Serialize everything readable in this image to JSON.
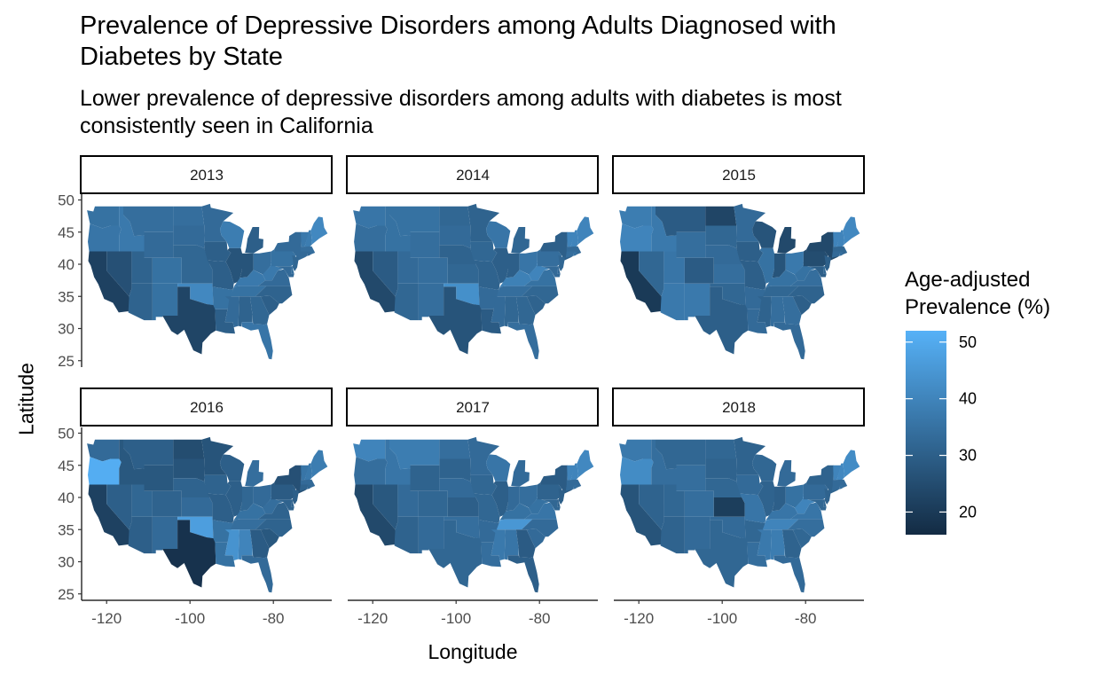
{
  "chart_data": {
    "type": "map",
    "title": "Prevalence of Depressive Disorders among Adults Diagnosed with Diabetes by State",
    "subtitle": "Lower prevalence of depressive disorders among adults with diabetes is most consistently seen in California",
    "xlabel": "Longitude",
    "ylabel": "Latitude",
    "legend_title": "Age-adjusted Prevalence (%)",
    "legend_position": "right",
    "legend_ticks": [
      20,
      30,
      40,
      50
    ],
    "color_range": [
      16,
      52
    ],
    "color_low": "#132b43",
    "color_high": "#56b1f7",
    "xlim": [
      -126,
      -66
    ],
    "ylim": [
      24,
      50
    ],
    "x_ticks": [
      -120,
      -100,
      -80
    ],
    "x_tick_labels": [
      "-120",
      "-100",
      "-80"
    ],
    "y_ticks": [
      25,
      30,
      35,
      40,
      45,
      50
    ],
    "y_tick_labels": [
      "25",
      "30",
      "35",
      "40",
      "45",
      "50"
    ],
    "facets": [
      {
        "label": "2013",
        "regions": {
          "WA": 35,
          "OR": 36,
          "CA": 22,
          "NV": 26,
          "ID": 37,
          "MT": 34,
          "WY": 33,
          "UT": 31,
          "CO": 35,
          "AZ": 31,
          "NM": 35,
          "ND": 34,
          "SD": 33,
          "NE": 32,
          "KS": 32,
          "OK": 41,
          "TX": 23,
          "MN": 33,
          "IA": 30,
          "MO": 30,
          "AR": 35,
          "LA": 30,
          "WI": 38,
          "IL": 27,
          "MI": 30,
          "IN": 27,
          "OH": 34,
          "KY": 37,
          "TN": 35,
          "MS": 33,
          "AL": 31,
          "GA": 32,
          "FL": 36,
          "SC": 30,
          "NC": 31,
          "VA": 33,
          "WV": 37,
          "PA": 35,
          "NY": 33,
          "VT": 37,
          "NH": 38,
          "ME": 41,
          "MA": 34,
          "CT": 33,
          "RI": 33,
          "NJ": 32,
          "DE": 34,
          "MD": 33
        }
      },
      {
        "label": "2014",
        "regions": {
          "WA": 36,
          "OR": 34,
          "CA": 24,
          "NV": 29,
          "ID": 35,
          "MT": 35,
          "WY": 34,
          "UT": 33,
          "CO": 34,
          "AZ": 32,
          "NM": 34,
          "ND": 32,
          "SD": 33,
          "NE": 31,
          "KS": 32,
          "OK": 43,
          "TX": 27,
          "MN": 31,
          "IA": 32,
          "MO": 31,
          "AR": 33,
          "LA": 29,
          "WI": 36,
          "IL": 30,
          "MI": 32,
          "IN": 30,
          "OH": 36,
          "KY": 39,
          "TN": 34,
          "MS": 33,
          "AL": 32,
          "GA": 32,
          "FL": 34,
          "SC": 31,
          "NC": 32,
          "VA": 35,
          "WV": 40,
          "PA": 34,
          "NY": 30,
          "VT": 40,
          "NH": 40,
          "ME": 40,
          "MA": 33,
          "CT": 34,
          "RI": 35,
          "NJ": 32,
          "DE": 33,
          "MD": 33
        }
      },
      {
        "label": "2015",
        "regions": {
          "WA": 38,
          "OR": 40,
          "CA": 20,
          "NV": 32,
          "ID": 37,
          "MT": 29,
          "WY": 34,
          "UT": 36,
          "CO": 29,
          "AZ": 37,
          "NM": 37,
          "ND": 23,
          "SD": 32,
          "NE": 33,
          "KS": 34,
          "OK": 32,
          "TX": 30,
          "MN": 33,
          "IA": 30,
          "MO": 30,
          "AR": 33,
          "LA": 33,
          "WI": 27,
          "IL": 35,
          "MI": 24,
          "IN": 27,
          "OH": 37,
          "KY": 35,
          "TN": 32,
          "MS": 31,
          "AL": 34,
          "GA": 34,
          "FL": 33,
          "SC": 30,
          "NC": 31,
          "VA": 34,
          "WV": 35,
          "PA": 25,
          "NY": 24,
          "VT": 40,
          "NH": 40,
          "ME": 41,
          "MA": 32,
          "CT": 33,
          "RI": 34,
          "NJ": 30,
          "DE": 32,
          "MD": 30
        }
      },
      {
        "label": "2016",
        "regions": {
          "WA": 33,
          "OR": 51,
          "CA": 22,
          "NV": 30,
          "ID": 28,
          "MT": 30,
          "WY": 28,
          "UT": 32,
          "CO": 31,
          "AZ": 30,
          "NM": 33,
          "ND": 25,
          "SD": 27,
          "NE": 31,
          "KS": 33,
          "OK": 47,
          "TX": 18,
          "MN": 27,
          "IA": 31,
          "MO": 30,
          "AR": 35,
          "LA": 35,
          "WI": 30,
          "IL": 30,
          "MI": 34,
          "IN": 32,
          "OH": 33,
          "KY": 35,
          "TN": 34,
          "MS": 44,
          "AL": 40,
          "GA": 29,
          "FL": 33,
          "SC": 28,
          "NC": 31,
          "VA": 31,
          "WV": 34,
          "PA": 29,
          "NY": 26,
          "VT": 36,
          "NH": 37,
          "ME": 38,
          "MA": 33,
          "CT": 31,
          "RI": 32,
          "NJ": 30,
          "DE": 31,
          "MD": 31
        }
      },
      {
        "label": "2017",
        "regions": {
          "WA": 40,
          "OR": 34,
          "CA": 24,
          "NV": 28,
          "ID": 36,
          "MT": 38,
          "WY": 31,
          "UT": 33,
          "CO": 32,
          "AZ": 31,
          "NM": 33,
          "ND": 34,
          "SD": 31,
          "NE": 33,
          "KS": 30,
          "OK": 34,
          "TX": 32,
          "MN": 33,
          "IA": 32,
          "MO": 32,
          "AR": 33,
          "LA": 34,
          "WI": 36,
          "IL": 30,
          "MI": 33,
          "IN": 33,
          "OH": 34,
          "KY": 35,
          "TN": 45,
          "MS": 37,
          "AL": 36,
          "GA": 29,
          "FL": 30,
          "SC": 33,
          "NC": 33,
          "VA": 36,
          "WV": 35,
          "PA": 31,
          "NY": 29,
          "VT": 40,
          "NH": 40,
          "ME": 41,
          "MA": 33,
          "CT": 33,
          "RI": 34,
          "NJ": 30,
          "DE": 31,
          "MD": 32
        }
      },
      {
        "label": "2018",
        "regions": {
          "WA": 37,
          "OR": 42,
          "CA": 27,
          "NV": 31,
          "ID": 34,
          "MT": 32,
          "WY": 34,
          "UT": 32,
          "CO": 34,
          "AZ": 31,
          "NM": 33,
          "ND": 32,
          "SD": 31,
          "NE": 32,
          "KS": 21,
          "OK": 33,
          "TX": 32,
          "MN": 31,
          "IA": 33,
          "MO": 36,
          "AR": 32,
          "LA": 34,
          "WI": 32,
          "IL": 31,
          "MI": 33,
          "IN": 30,
          "OH": 35,
          "KY": 36,
          "TN": 40,
          "MS": 37,
          "AL": 38,
          "GA": 31,
          "FL": 33,
          "SC": 32,
          "NC": 34,
          "VA": 36,
          "WV": 40,
          "PA": 33,
          "NY": 31,
          "VT": 40,
          "NH": 41,
          "ME": 42,
          "MA": 33,
          "CT": 33,
          "RI": 34,
          "NJ": 31,
          "DE": 32,
          "MD": 32
        }
      }
    ]
  }
}
